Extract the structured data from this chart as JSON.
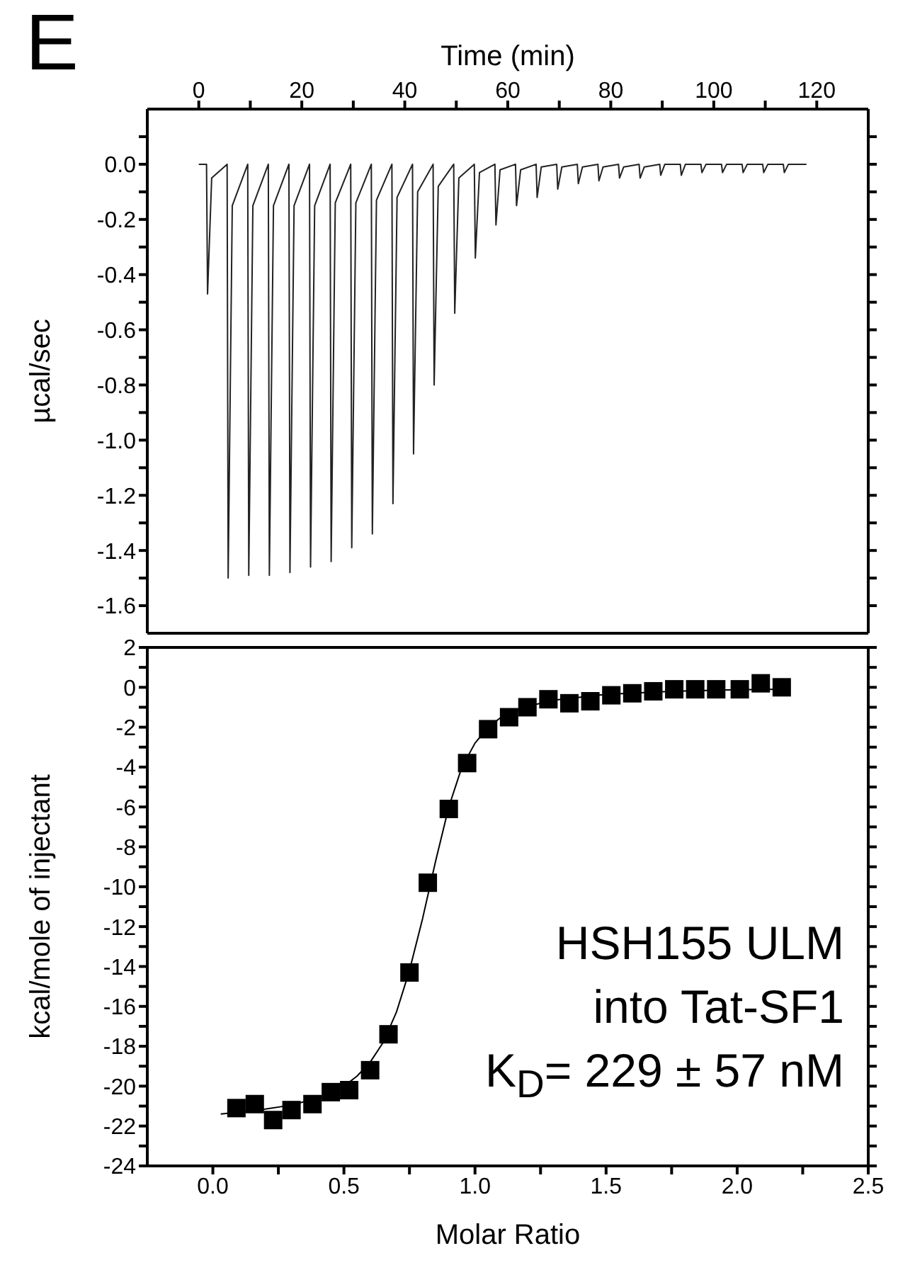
{
  "chart_data": [
    {
      "type": "line",
      "title": "E",
      "xlabel": "Time (min)",
      "ylabel": "µcal/sec",
      "marker": "none",
      "line_style": "solid",
      "grid": false,
      "x": [
        0,
        1.5,
        1.7,
        2.5,
        5.5,
        5.7,
        6.5,
        9.5,
        9.7,
        10.5,
        13.5,
        13.7,
        14.5,
        17.5,
        17.7,
        18.5,
        21.5,
        21.7,
        22.5,
        25.5,
        25.7,
        26.5,
        29.5,
        29.7,
        30.5,
        33.5,
        33.7,
        34.5,
        37.5,
        37.7,
        38.5,
        41.5,
        41.7,
        42.5,
        45.5,
        45.7,
        46.5,
        49.5,
        49.7,
        50.5,
        53.5,
        53.7,
        54.5,
        57.5,
        57.7,
        58.5,
        61.5,
        61.7,
        62.5,
        65.5,
        65.7,
        66.5,
        69.5,
        69.7,
        70.5,
        73.5,
        73.7,
        74.5,
        77.5,
        77.7,
        78.5,
        81.5,
        81.7,
        82.5,
        85.5,
        85.7,
        86.5,
        89.5,
        89.7,
        90.5,
        93.5,
        93.7,
        94.5,
        97.5,
        97.7,
        98.5,
        101.5,
        101.7,
        102.5,
        105.5,
        105.7,
        106.5,
        109.5,
        109.7,
        110.5,
        113.5,
        113.7,
        114.5,
        118
      ],
      "series": [
        {
          "color": "#222222",
          "values": [
            0,
            0,
            -0.47,
            -0.05,
            0,
            -1.5,
            -0.15,
            0,
            -1.49,
            -0.15,
            0,
            -1.49,
            -0.15,
            0,
            -1.48,
            -0.15,
            0,
            -1.46,
            -0.15,
            0,
            -1.44,
            -0.14,
            0,
            -1.39,
            -0.14,
            0,
            -1.34,
            -0.13,
            0,
            -1.23,
            -0.12,
            0,
            -1.05,
            -0.1,
            0,
            -0.8,
            -0.08,
            0,
            -0.54,
            -0.05,
            0,
            -0.34,
            -0.03,
            0,
            -0.22,
            -0.02,
            0,
            -0.15,
            -0.02,
            0,
            -0.12,
            -0.01,
            0,
            -0.09,
            -0.01,
            0,
            -0.07,
            -0.01,
            0,
            -0.06,
            -0.01,
            0,
            -0.05,
            -0.01,
            0,
            -0.05,
            -0.01,
            0,
            -0.04,
            0,
            0,
            -0.04,
            0,
            0,
            -0.03,
            0,
            0,
            -0.03,
            0,
            0,
            -0.03,
            0,
            0,
            -0.03,
            0,
            0,
            -0.03,
            0,
            0
          ]
        }
      ],
      "xlim": [
        -10,
        130
      ],
      "xticks": [
        0,
        {
          "value": 10,
          "label": null
        },
        20,
        {
          "value": 30,
          "label": null
        },
        40,
        {
          "value": 50,
          "label": null
        },
        60,
        {
          "value": 70,
          "label": null
        },
        80,
        {
          "value": 90,
          "label": null
        },
        100,
        {
          "value": 110,
          "label": null
        },
        120
      ],
      "ylim": [
        -1.7,
        0.2
      ],
      "yticks": [
        {
          "value": 0.1,
          "label": null
        },
        {
          "value": 0,
          "label": "0.0"
        },
        {
          "value": -0.1,
          "label": null
        },
        -0.2,
        {
          "value": -0.3,
          "label": null
        },
        -0.4,
        {
          "value": -0.5,
          "label": null
        },
        -0.6,
        {
          "value": -0.7,
          "label": null
        },
        -0.8,
        {
          "value": -0.9,
          "label": null
        },
        {
          "value": -1,
          "label": "-1.0"
        },
        {
          "value": -1.1,
          "label": null
        },
        -1.2,
        {
          "value": -1.3,
          "label": null
        },
        -1.4,
        {
          "value": -1.5,
          "label": null
        },
        -1.6
      ]
    },
    {
      "type": "scatter",
      "xlabel": "Molar Ratio",
      "ylabel": "kcal/mole of injectant",
      "grid": false,
      "x": [
        0.09,
        0.16,
        0.23,
        0.3,
        0.38,
        0.45,
        0.52,
        0.6,
        0.67,
        0.75,
        0.82,
        0.9,
        0.97,
        1.05,
        1.13,
        1.2,
        1.28,
        1.36,
        1.44,
        1.52,
        1.6,
        1.68,
        1.76,
        1.84,
        1.92,
        2.01,
        2.09,
        2.17
      ],
      "series": [
        {
          "marker": "square",
          "color": "#000000",
          "values": [
            -21.1,
            -20.9,
            -21.7,
            -21.2,
            -20.9,
            -20.3,
            -20.2,
            -19.2,
            -17.4,
            -14.3,
            -9.8,
            -6.1,
            -3.8,
            -2.1,
            -1.5,
            -1.0,
            -0.6,
            -0.8,
            -0.7,
            -0.4,
            -0.3,
            -0.2,
            -0.1,
            -0.1,
            -0.1,
            -0.1,
            0.2,
            0.0
          ]
        },
        {
          "type": "line",
          "marker": "none",
          "color": "#000000",
          "x": [
            0.03,
            0.1,
            0.2,
            0.3,
            0.4,
            0.5,
            0.55,
            0.6,
            0.65,
            0.7,
            0.75,
            0.8,
            0.85,
            0.9,
            0.95,
            1.0,
            1.05,
            1.1,
            1.2,
            1.3,
            1.5,
            1.75,
            2.0,
            2.18
          ],
          "values": [
            -21.4,
            -21.3,
            -21.15,
            -20.95,
            -20.6,
            -20.0,
            -19.5,
            -18.8,
            -17.8,
            -16.3,
            -14.2,
            -11.6,
            -8.7,
            -6.0,
            -4.0,
            -2.8,
            -2.0,
            -1.5,
            -0.95,
            -0.65,
            -0.35,
            -0.2,
            -0.12,
            -0.1
          ]
        }
      ],
      "xlim": [
        -0.25,
        2.5
      ],
      "xticks": [
        {
          "value": 0,
          "label": "0.0"
        },
        {
          "value": 0.25,
          "label": null
        },
        {
          "value": 0.5,
          "label": "0.5"
        },
        {
          "value": 0.75,
          "label": null
        },
        {
          "value": 1,
          "label": "1.0"
        },
        {
          "value": 1.25,
          "label": null
        },
        {
          "value": 1.5,
          "label": "1.5"
        },
        {
          "value": 1.75,
          "label": null
        },
        {
          "value": 2,
          "label": "2.0"
        },
        {
          "value": 2.25,
          "label": null
        },
        {
          "value": 2.5,
          "label": "2.5"
        }
      ],
      "ylim": [
        -24,
        2
      ],
      "yticks": [
        2,
        {
          "value": 1,
          "label": null
        },
        0,
        {
          "value": -1,
          "label": null
        },
        -2,
        {
          "value": -3,
          "label": null
        },
        -4,
        {
          "value": -5,
          "label": null
        },
        -6,
        {
          "value": -7,
          "label": null
        },
        -8,
        {
          "value": -9,
          "label": null
        },
        -10,
        {
          "value": -11,
          "label": null
        },
        -12,
        {
          "value": -13,
          "label": null
        },
        -14,
        {
          "value": -15,
          "label": null
        },
        -16,
        {
          "value": -17,
          "label": null
        },
        -18,
        {
          "value": -19,
          "label": null
        },
        -20,
        {
          "value": -21,
          "label": null
        },
        -22,
        {
          "value": -23,
          "label": null
        },
        -24
      ],
      "annotations": [
        "HSH155 ULM",
        "into Tat-SF1",
        "K$_{D}$= 229 ± 57 nM"
      ]
    }
  ]
}
